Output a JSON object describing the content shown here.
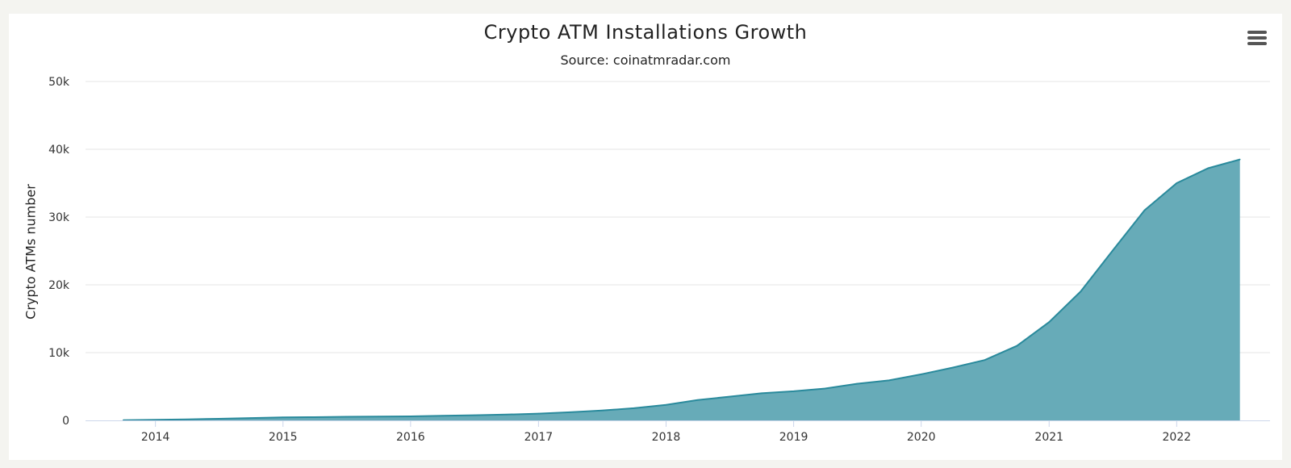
{
  "chart_data": {
    "type": "area",
    "title": "Crypto ATM Installations Growth",
    "subtitle": "Source: coinatmradar.com",
    "ylabel": "Crypto ATMs number",
    "xlabel": "",
    "ylim": [
      0,
      50000
    ],
    "xlim": [
      "2013-06-15",
      "2022-09-25"
    ],
    "y_ticks": [
      {
        "value": 0,
        "label": "0"
      },
      {
        "value": 10000,
        "label": "10k"
      },
      {
        "value": 20000,
        "label": "20k"
      },
      {
        "value": 30000,
        "label": "30k"
      },
      {
        "value": 40000,
        "label": "40k"
      },
      {
        "value": 50000,
        "label": "50k"
      }
    ],
    "x_ticks": [
      {
        "date": "2014-01-01",
        "label": "2014"
      },
      {
        "date": "2015-01-01",
        "label": "2015"
      },
      {
        "date": "2016-01-01",
        "label": "2016"
      },
      {
        "date": "2017-01-01",
        "label": "2017"
      },
      {
        "date": "2018-01-01",
        "label": "2018"
      },
      {
        "date": "2019-01-01",
        "label": "2019"
      },
      {
        "date": "2020-01-01",
        "label": "2020"
      },
      {
        "date": "2021-01-01",
        "label": "2021"
      },
      {
        "date": "2022-01-01",
        "label": "2022"
      }
    ],
    "grid": true,
    "colors": {
      "fill": "#67abb8",
      "line": "#2a8a9c",
      "grid": "#e6e6e6"
    },
    "series": [
      {
        "x": [
          "2013-10-01",
          "2014-01-01",
          "2014-04-01",
          "2014-07-01",
          "2014-10-01",
          "2015-01-01",
          "2015-04-01",
          "2015-07-01",
          "2015-10-01",
          "2016-01-01",
          "2016-04-01",
          "2016-07-01",
          "2016-10-01",
          "2017-01-01",
          "2017-04-01",
          "2017-07-01",
          "2017-10-01",
          "2018-01-01",
          "2018-04-01",
          "2018-07-01",
          "2018-10-01",
          "2019-01-01",
          "2019-04-01",
          "2019-07-01",
          "2019-10-01",
          "2020-01-01",
          "2020-04-01",
          "2020-07-01",
          "2020-10-01",
          "2021-01-01",
          "2021-04-01",
          "2021-07-01",
          "2021-10-01",
          "2022-01-01",
          "2022-04-01",
          "2022-07-01"
        ],
        "values": [
          40,
          80,
          150,
          240,
          350,
          450,
          480,
          530,
          570,
          600,
          680,
          760,
          860,
          1000,
          1200,
          1450,
          1800,
          2300,
          3000,
          3500,
          4000,
          4300,
          4700,
          5400,
          5900,
          6800,
          7800,
          8900,
          11000,
          14500,
          19000,
          25000,
          31000,
          35000,
          37200,
          38500
        ]
      }
    ]
  }
}
